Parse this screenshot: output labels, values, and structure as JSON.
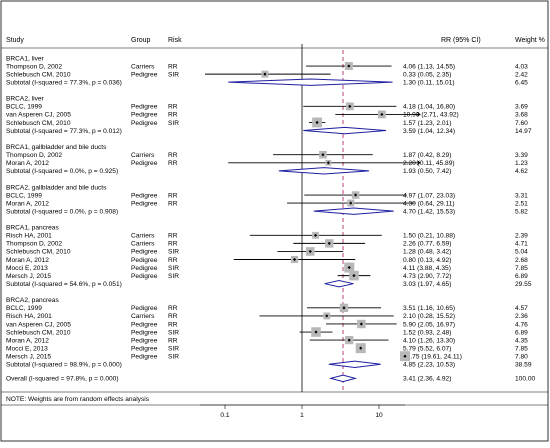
{
  "chart_data": {
    "type": "forest",
    "headers": {
      "study": "Study",
      "group": "Group",
      "risk": "Risk",
      "effect": "RR (95% CI)",
      "weight": "Weight %"
    },
    "x_scale": "log",
    "x_ticks": [
      {
        "value": 0.1,
        "label": "0.1"
      },
      {
        "value": 1,
        "label": "1"
      },
      {
        "value": 10,
        "label": "10"
      }
    ],
    "overall_line_value": 3.41,
    "subgroups": [
      {
        "title": "BRCA1, liver",
        "studies": [
          {
            "name": "Thompson D, 2002",
            "group": "Carriers",
            "risk": "RR",
            "rr": 4.06,
            "lo": 1.13,
            "hi": 14.55,
            "ci_text": "4.06 (1.13, 14.55)",
            "weight": "4.03"
          },
          {
            "name": "Schlebusch CM, 2010",
            "group": "Pedigree",
            "risk": "SIR",
            "rr": 0.33,
            "lo": 0.05,
            "hi": 2.35,
            "ci_text": "0.33 (0.05, 2.35)",
            "weight": "2.42"
          }
        ],
        "subtotal": {
          "label": "Subtotal (I-squared = 77.3%, p = 0.036)",
          "rr": 1.3,
          "lo": 0.11,
          "hi": 15.01,
          "ci_text": "1.30 (0.11, 15.01)",
          "weight": "6.45"
        }
      },
      {
        "title": "BRCA2, liver",
        "studies": [
          {
            "name": "BCLC, 1999",
            "group": "Pedigree",
            "risk": "RR",
            "rr": 4.18,
            "lo": 1.04,
            "hi": 16.8,
            "ci_text": "4.18 (1.04, 16.80)",
            "weight": "3.69"
          },
          {
            "name": "van Asperen CJ, 2005",
            "group": "Pedigree",
            "risk": "RR",
            "rr": 10.9,
            "lo": 2.71,
            "hi": 43.92,
            "ci_text": "10.90 (2.71, 43.92)",
            "weight": "3.68"
          },
          {
            "name": "Schlebusch CM, 2010",
            "group": "Pedigree",
            "risk": "SIR",
            "rr": 1.57,
            "lo": 1.23,
            "hi": 2.01,
            "ci_text": "1.57 (1.23, 2.01)",
            "weight": "7.60"
          }
        ],
        "subtotal": {
          "label": "Subtotal (I-squared = 77.3%, p = 0.012)",
          "rr": 3.59,
          "lo": 1.04,
          "hi": 12.34,
          "ci_text": "3.59 (1.04, 12.34)",
          "weight": "14.97"
        }
      },
      {
        "title": "BRCA1, gallbladder and bile ducts",
        "studies": [
          {
            "name": "Thompson D, 2002",
            "group": "Carriers",
            "risk": "RR",
            "rr": 1.87,
            "lo": 0.42,
            "hi": 8.29,
            "ci_text": "1.87 (0.42, 8.29)",
            "weight": "3.39"
          },
          {
            "name": "Moran A, 2012",
            "group": "Pedigree",
            "risk": "RR",
            "rr": 2.2,
            "lo": 0.11,
            "hi": 45.89,
            "ci_text": "2.20 (0.11, 45.89)",
            "weight": "1.23"
          }
        ],
        "subtotal": {
          "label": "Subtotal (I-squared = 0.0%, p = 0.925)",
          "rr": 1.93,
          "lo": 0.5,
          "hi": 7.42,
          "ci_text": "1.93 (0.50, 7.42)",
          "weight": "4.62"
        }
      },
      {
        "title": "BRCA2, gallbladder and bile ducts",
        "studies": [
          {
            "name": "BCLC, 1999",
            "group": "Pedigree",
            "risk": "RR",
            "rr": 4.97,
            "lo": 1.07,
            "hi": 23.03,
            "ci_text": "4.97 (1.07, 23.03)",
            "weight": "3.31"
          },
          {
            "name": "Moran A, 2012",
            "group": "Pedigree",
            "risk": "RR",
            "rr": 4.3,
            "lo": 0.64,
            "hi": 29.11,
            "ci_text": "4.30 (0.64, 29.11)",
            "weight": "2.51"
          }
        ],
        "subtotal": {
          "label": "Subtotal (I-squared = 0.0%, p = 0.908)",
          "rr": 4.7,
          "lo": 1.42,
          "hi": 15.53,
          "ci_text": "4.70 (1.42, 15.53)",
          "weight": "5.82"
        }
      },
      {
        "title": "BRCA1, pancreas",
        "studies": [
          {
            "name": "Risch HA, 2001",
            "group": "Carriers",
            "risk": "RR",
            "rr": 1.5,
            "lo": 0.21,
            "hi": 10.88,
            "ci_text": "1.50 (0.21, 10.88)",
            "weight": "2.39"
          },
          {
            "name": "Thompson D, 2002",
            "group": "Carriers",
            "risk": "RR",
            "rr": 2.26,
            "lo": 0.77,
            "hi": 6.59,
            "ci_text": "2.26 (0.77, 6.59)",
            "weight": "4.71"
          },
          {
            "name": "Schlebusch CM, 2010",
            "group": "Pedigree",
            "risk": "SIR",
            "rr": 1.28,
            "lo": 0.48,
            "hi": 3.42,
            "ci_text": "1.28 (0.48, 3.42)",
            "weight": "5.04"
          },
          {
            "name": "Moran A, 2012",
            "group": "Pedigree",
            "risk": "RR",
            "rr": 0.8,
            "lo": 0.13,
            "hi": 4.92,
            "ci_text": "0.80 (0.13, 4.92)",
            "weight": "2.68"
          },
          {
            "name": "Mocci E, 2013",
            "group": "Pedigree",
            "risk": "SIR",
            "rr": 4.11,
            "lo": 3.88,
            "hi": 4.35,
            "ci_text": "4.11 (3.88, 4.35)",
            "weight": "7.85"
          },
          {
            "name": "Mersch J, 2015",
            "group": "Pedigree",
            "risk": "SIR",
            "rr": 4.73,
            "lo": 2.9,
            "hi": 7.72,
            "ci_text": "4.73 (2.90, 7.72)",
            "weight": "6.89"
          }
        ],
        "subtotal": {
          "label": "Subtotal (I-squared = 54.6%, p = 0.051)",
          "rr": 3.03,
          "lo": 1.97,
          "hi": 4.65,
          "ci_text": "3.03 (1.97, 4.65)",
          "weight": "29.55"
        }
      },
      {
        "title": "BRCA2, pancreas",
        "studies": [
          {
            "name": "BCLC, 1999",
            "group": "Pedigree",
            "risk": "RR",
            "rr": 3.51,
            "lo": 1.16,
            "hi": 10.65,
            "ci_text": "3.51 (1.16, 10.65)",
            "weight": "4.57"
          },
          {
            "name": "Risch HA, 2001",
            "group": "Carriers",
            "risk": "RR",
            "rr": 2.1,
            "lo": 0.28,
            "hi": 15.52,
            "ci_text": "2.10 (0.28, 15.52)",
            "weight": "2.36"
          },
          {
            "name": "van Asperen CJ, 2005",
            "group": "Pedigree",
            "risk": "RR",
            "rr": 5.9,
            "lo": 2.05,
            "hi": 16.97,
            "ci_text": "5.90 (2.05, 16.97)",
            "weight": "4.76"
          },
          {
            "name": "Schlebusch CM, 2010",
            "group": "Pedigree",
            "risk": "SIR",
            "rr": 1.52,
            "lo": 0.93,
            "hi": 2.48,
            "ci_text": "1.52 (0.93, 2.48)",
            "weight": "6.89"
          },
          {
            "name": "Moran A, 2012",
            "group": "Pedigree",
            "risk": "RR",
            "rr": 4.1,
            "lo": 1.26,
            "hi": 13.3,
            "ci_text": "4.10 (1.26, 13.30)",
            "weight": "4.35"
          },
          {
            "name": "Mocci E, 2013",
            "group": "Pedigree",
            "risk": "SIR",
            "rr": 5.79,
            "lo": 5.52,
            "hi": 6.07,
            "ci_text": "5.79 (5.52, 6.07)",
            "weight": "7.85"
          },
          {
            "name": "Mersch J, 2015",
            "group": "Pedigree",
            "risk": "SIR",
            "rr": 21.75,
            "lo": 19.61,
            "hi": 24.11,
            "ci_text": "21.75 (19.61, 24.11)",
            "weight": "7.80"
          }
        ],
        "subtotal": {
          "label": "Subtotal (I-squared = 98.9%, p = 0.000)",
          "rr": 4.85,
          "lo": 2.23,
          "hi": 10.53,
          "ci_text": "4.85 (2.23, 10.53)",
          "weight": "38.59"
        }
      }
    ],
    "overall": {
      "label": "Overall  (I-squared = 97.8%, p = 0.000)",
      "rr": 3.41,
      "lo": 2.36,
      "hi": 4.92,
      "ci_text": "3.41 (2.36, 4.92)",
      "weight": "100.00"
    },
    "note": "NOTE: Weights are from random effects analysis",
    "colors": {
      "frame": "#000000",
      "box": "#b8b8b8",
      "diamond": "#1f1fa0",
      "ref_line": "#b0306f",
      "text": "#000000"
    }
  }
}
